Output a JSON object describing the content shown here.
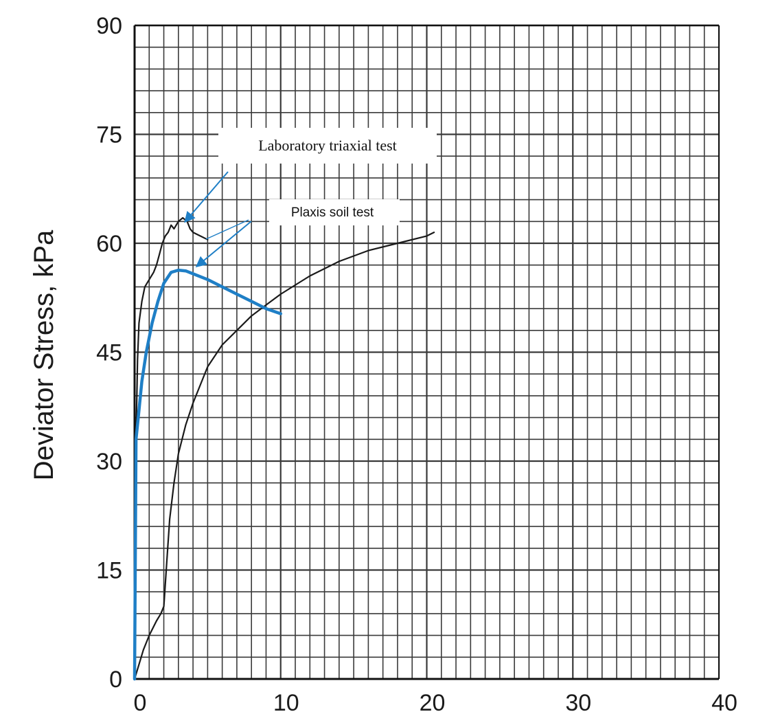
{
  "chart_data": {
    "type": "line",
    "ylabel": "Deviator Stress, kPa",
    "xlabel": "",
    "xlim": [
      0,
      40
    ],
    "ylim": [
      0,
      90
    ],
    "x_ticks": [
      "0",
      "10",
      "20",
      "30",
      "40"
    ],
    "y_ticks": [
      "0",
      "15",
      "30",
      "45",
      "60",
      "75",
      "90"
    ],
    "grid": true,
    "series": [
      {
        "style": "black-curve",
        "color": "#1a1a1a",
        "x": [
          0.0,
          0.3,
          0.6,
          1.0,
          1.5,
          1.8,
          2.0,
          2.2,
          2.4,
          2.7,
          3.0,
          3.5,
          4.0,
          5.0,
          6.0,
          7.0,
          8.0,
          9.0,
          10.0,
          12.0,
          14.0,
          16.0,
          18.0,
          20.0,
          20.5
        ],
        "y": [
          0.0,
          2.0,
          4.0,
          6.0,
          8.0,
          9.0,
          10.0,
          16.0,
          22.0,
          27.0,
          31.0,
          35.0,
          38.0,
          43.0,
          46.0,
          48.0,
          50.0,
          51.5,
          53.0,
          55.5,
          57.5,
          59.0,
          60.0,
          61.0,
          61.5
        ]
      },
      {
        "style": "black-curve",
        "color": "#1a1a1a",
        "x": [
          0.0,
          0.1,
          0.2,
          0.3,
          0.5,
          0.7,
          1.0,
          1.3,
          1.5,
          1.7,
          1.9,
          2.1,
          2.3,
          2.5,
          2.7,
          3.0,
          3.3,
          3.6,
          3.8,
          4.0,
          4.5,
          5.0
        ],
        "y": [
          0.0,
          33.0,
          44.0,
          49.0,
          52.0,
          54.0,
          55.0,
          56.0,
          57.0,
          58.5,
          60.0,
          61.0,
          61.5,
          62.5,
          62.0,
          63.0,
          63.5,
          63.0,
          62.0,
          61.5,
          61.0,
          60.5
        ]
      },
      {
        "style": "blue-curve",
        "color": "#1f7fc6",
        "x": [
          0.0,
          0.1,
          0.3,
          0.5,
          0.8,
          1.2,
          1.6,
          2.0,
          2.5,
          3.0,
          3.5,
          4.0,
          5.0,
          6.0,
          7.0,
          8.0,
          9.0,
          10.0
        ],
        "y": [
          0.0,
          33.0,
          37.0,
          41.0,
          45.0,
          49.0,
          52.0,
          54.5,
          56.0,
          56.3,
          56.2,
          55.8,
          55.0,
          54.0,
          53.0,
          52.0,
          51.0,
          50.3
        ]
      }
    ],
    "annotations": [
      {
        "text": "Laboratory triaxial test",
        "target_x": 3.3,
        "target_y": 63.5
      },
      {
        "text": "Plaxis soil test",
        "target_x": 4.0,
        "target_y": 56.0
      }
    ]
  }
}
